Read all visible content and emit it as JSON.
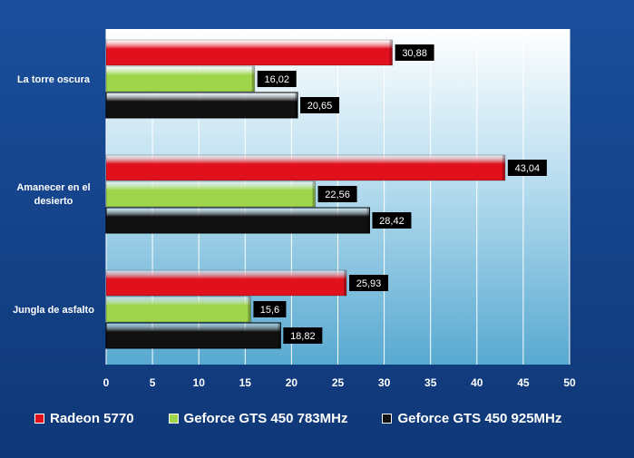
{
  "chart_data": {
    "type": "bar",
    "orientation": "horizontal",
    "categories": [
      "La torre oscura",
      "Amanecer en el desierto",
      "Jungla de asfalto"
    ],
    "series": [
      {
        "name": "Radeon 5770",
        "color": "#e0101c",
        "values": [
          30.88,
          43.04,
          25.93
        ],
        "labels": [
          "30,88",
          "43,04",
          "25,93"
        ]
      },
      {
        "name": "Geforce GTS 450 783MHz",
        "color": "#9ed54b",
        "values": [
          16.02,
          22.56,
          15.6
        ],
        "labels": [
          "16,02",
          "22,56",
          "15,6"
        ]
      },
      {
        "name": "Geforce GTS 450 925MHz",
        "color": "#111111",
        "values": [
          20.65,
          28.42,
          18.82
        ],
        "labels": [
          "20,65",
          "28,42",
          "18,82"
        ]
      }
    ],
    "xlim": [
      0,
      50
    ],
    "xticks": [
      0,
      5,
      10,
      15,
      20,
      25,
      30,
      35,
      40,
      45,
      50
    ],
    "grid": true,
    "legend_position": "bottom",
    "title": "",
    "xlabel": "",
    "ylabel": ""
  }
}
